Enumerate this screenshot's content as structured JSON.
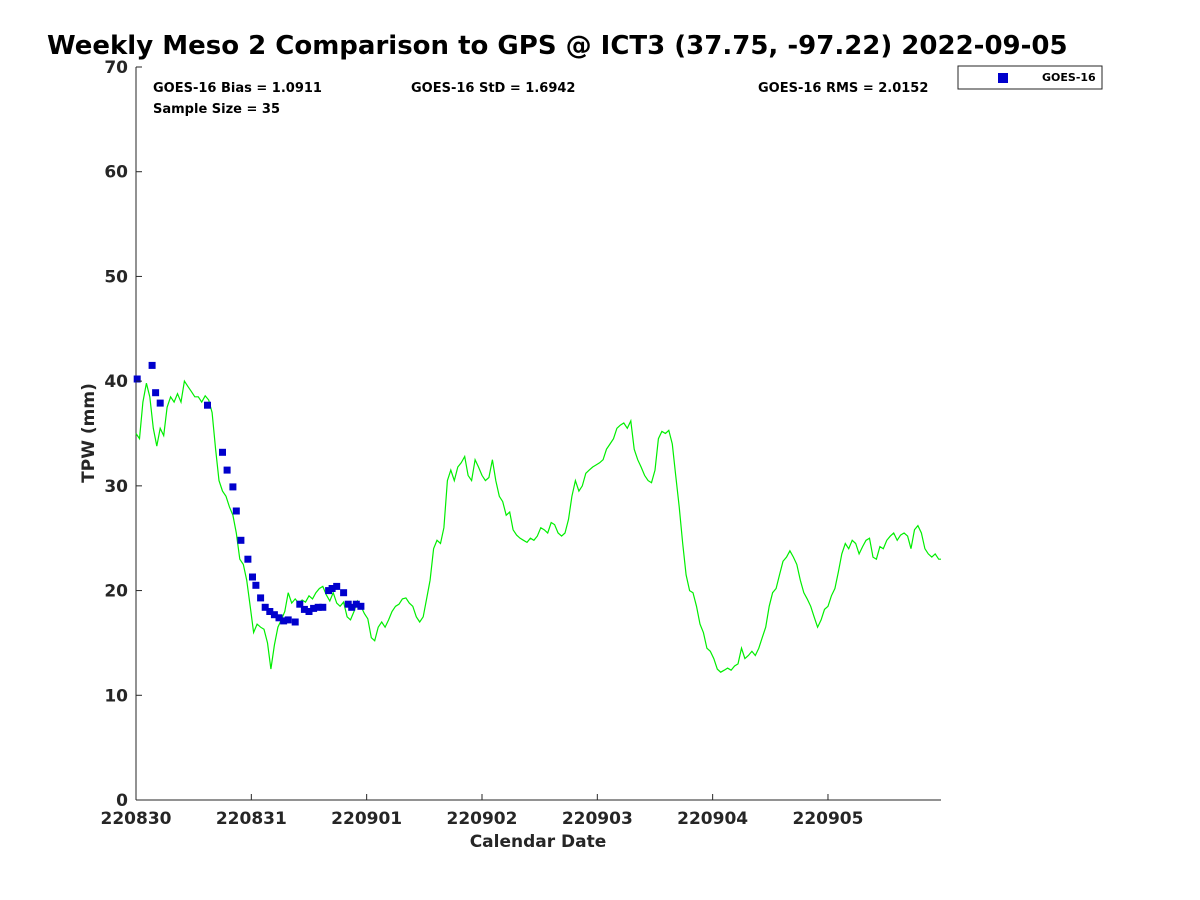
{
  "chart_data": {
    "type": "scatter",
    "title": "Weekly Meso 2 Comparison to GPS @ ICT3 (37.75, -97.22) 2022-09-05",
    "xlabel": "Calendar Date",
    "ylabel": "TPW (mm)",
    "xlim": [
      0,
      6.98
    ],
    "ylim": [
      0,
      70
    ],
    "yticks": [
      0,
      10,
      20,
      30,
      40,
      50,
      60,
      70
    ],
    "xticks": [
      {
        "value": 0,
        "label": "220830"
      },
      {
        "value": 1,
        "label": "220831"
      },
      {
        "value": 2,
        "label": "220901"
      },
      {
        "value": 3,
        "label": "220902"
      },
      {
        "value": 4,
        "label": "220903"
      },
      {
        "value": 5,
        "label": "220904"
      },
      {
        "value": 6,
        "label": "220905"
      }
    ],
    "grid": false,
    "legend_position": "top-right, outside plot",
    "stats": {
      "bias": "GOES-16 Bias = 1.0911",
      "std": "GOES-16 StD = 1.6942",
      "rms": "GOES-16 RMS = 2.0152",
      "sample_size": "Sample Size = 35"
    },
    "series": [
      {
        "name": "GOES-16",
        "kind": "markers",
        "color": "#0000cc",
        "x": [
          0.01,
          0.14,
          0.17,
          0.21,
          0.62,
          0.75,
          0.79,
          0.84,
          0.87,
          0.91,
          0.97,
          1.01,
          1.04,
          1.08,
          1.12,
          1.16,
          1.2,
          1.24,
          1.28,
          1.32,
          1.38,
          1.42,
          1.46,
          1.5,
          1.54,
          1.58,
          1.62,
          1.67,
          1.7,
          1.74,
          1.8,
          1.84,
          1.87,
          1.91,
          1.95
        ],
        "y": [
          40.2,
          41.5,
          38.9,
          37.9,
          37.7,
          33.2,
          31.5,
          29.9,
          27.6,
          24.8,
          23.0,
          21.3,
          20.5,
          19.3,
          18.4,
          18.0,
          17.7,
          17.4,
          17.1,
          17.2,
          17.0,
          18.7,
          18.2,
          18.0,
          18.3,
          18.4,
          18.4,
          20.0,
          20.2,
          20.4,
          19.8,
          18.7,
          18.4,
          18.7,
          18.5
        ]
      },
      {
        "name": "GPS",
        "kind": "line",
        "color": "#00ee00",
        "x": [
          0,
          0.03,
          0.06,
          0.09,
          0.12,
          0.15,
          0.18,
          0.21,
          0.24,
          0.27,
          0.3,
          0.33,
          0.36,
          0.39,
          0.42,
          0.45,
          0.48,
          0.51,
          0.54,
          0.57,
          0.6,
          0.63,
          0.66,
          0.69,
          0.72,
          0.75,
          0.78,
          0.81,
          0.84,
          0.87,
          0.9,
          0.93,
          0.96,
          0.99,
          1.02,
          1.05,
          1.08,
          1.11,
          1.14,
          1.17,
          1.2,
          1.23,
          1.26,
          1.29,
          1.32,
          1.35,
          1.38,
          1.41,
          1.44,
          1.47,
          1.5,
          1.53,
          1.56,
          1.59,
          1.62,
          1.65,
          1.68,
          1.71,
          1.74,
          1.77,
          1.8,
          1.83,
          1.86,
          1.89,
          1.92,
          1.95,
          1.98,
          2.01,
          2.04,
          2.07,
          2.1,
          2.13,
          2.16,
          2.19,
          2.22,
          2.25,
          2.28,
          2.31,
          2.34,
          2.37,
          2.4,
          2.43,
          2.46,
          2.49,
          2.52,
          2.55,
          2.58,
          2.61,
          2.64,
          2.67,
          2.7,
          2.73,
          2.76,
          2.79,
          2.82,
          2.85,
          2.88,
          2.91,
          2.94,
          2.97,
          3.0,
          3.03,
          3.06,
          3.09,
          3.12,
          3.15,
          3.18,
          3.21,
          3.24,
          3.27,
          3.3,
          3.33,
          3.36,
          3.39,
          3.42,
          3.45,
          3.48,
          3.51,
          3.54,
          3.57,
          3.6,
          3.63,
          3.66,
          3.69,
          3.72,
          3.75,
          3.78,
          3.81,
          3.84,
          3.87,
          3.9,
          3.93,
          3.96,
          3.99,
          4.02,
          4.05,
          4.08,
          4.11,
          4.14,
          4.17,
          4.2,
          4.23,
          4.26,
          4.29,
          4.32,
          4.35,
          4.38,
          4.41,
          4.44,
          4.47,
          4.5,
          4.53,
          4.56,
          4.59,
          4.62,
          4.65,
          4.68,
          4.71,
          4.74,
          4.77,
          4.8,
          4.83,
          4.86,
          4.89,
          4.92,
          4.95,
          4.98,
          5.01,
          5.04,
          5.07,
          5.1,
          5.13,
          5.16,
          5.19,
          5.22,
          5.25,
          5.28,
          5.31,
          5.34,
          5.37,
          5.4,
          5.43,
          5.46,
          5.49,
          5.52,
          5.55,
          5.58,
          5.61,
          5.64,
          5.67,
          5.7,
          5.73,
          5.76,
          5.79,
          5.82,
          5.85,
          5.88,
          5.91,
          5.94,
          5.97,
          6.0,
          6.03,
          6.06,
          6.09,
          6.12,
          6.15,
          6.18,
          6.21,
          6.24,
          6.27,
          6.3,
          6.33,
          6.36,
          6.39,
          6.42,
          6.45,
          6.48,
          6.51,
          6.54,
          6.57,
          6.6,
          6.63,
          6.66,
          6.69,
          6.72,
          6.75,
          6.78,
          6.81,
          6.84,
          6.87,
          6.9,
          6.93,
          6.96,
          6.98
        ],
        "y": [
          35.0,
          34.5,
          38.0,
          39.8,
          38.5,
          35.5,
          33.8,
          35.5,
          34.8,
          37.5,
          38.5,
          38.0,
          38.8,
          38.0,
          40.0,
          39.5,
          39.0,
          38.5,
          38.5,
          38.0,
          38.6,
          38.2,
          37.0,
          33.5,
          30.5,
          29.5,
          29.0,
          28.0,
          27.2,
          25.5,
          23.0,
          22.5,
          21.0,
          18.5,
          16.0,
          16.8,
          16.5,
          16.3,
          15.0,
          12.5,
          14.8,
          16.5,
          17.2,
          18.0,
          19.8,
          18.8,
          19.2,
          18.8,
          19.1,
          18.9,
          19.5,
          19.2,
          19.8,
          20.2,
          20.4,
          19.6,
          19.0,
          19.8,
          18.8,
          18.5,
          18.9,
          17.5,
          17.2,
          18.0,
          19.0,
          18.5,
          17.8,
          17.3,
          15.5,
          15.2,
          16.5,
          17.0,
          16.5,
          17.2,
          18.0,
          18.5,
          18.7,
          19.2,
          19.3,
          18.8,
          18.5,
          17.5,
          17.0,
          17.5,
          19.2,
          21.0,
          24.0,
          24.8,
          24.5,
          26.0,
          30.5,
          31.5,
          30.5,
          31.8,
          32.2,
          32.8,
          31.0,
          30.5,
          32.5,
          31.8,
          31.0,
          30.5,
          30.8,
          32.5,
          30.5,
          29.0,
          28.5,
          27.2,
          27.5,
          25.8,
          25.3,
          25.0,
          24.8,
          24.6,
          25.0,
          24.8,
          25.2,
          26.0,
          25.8,
          25.5,
          26.5,
          26.3,
          25.5,
          25.2,
          25.5,
          26.8,
          29.0,
          30.5,
          29.5,
          30.0,
          31.2,
          31.5,
          31.8,
          32.0,
          32.2,
          32.5,
          33.5,
          34.0,
          34.5,
          35.5,
          35.8,
          36.0,
          35.5,
          36.2,
          33.5,
          32.5,
          31.8,
          31.0,
          30.5,
          30.3,
          31.5,
          34.5,
          35.2,
          35.0,
          35.3,
          34.0,
          31.0,
          28.0,
          24.5,
          21.5,
          20.0,
          19.8,
          18.5,
          16.8,
          16.0,
          14.5,
          14.2,
          13.5,
          12.5,
          12.2,
          12.4,
          12.6,
          12.4,
          12.8,
          13.0,
          14.5,
          13.5,
          13.8,
          14.2,
          13.8,
          14.5,
          15.5,
          16.5,
          18.5,
          19.8,
          20.2,
          21.5,
          22.8,
          23.2,
          23.8,
          23.2,
          22.5,
          21.0,
          19.8,
          19.2,
          18.5,
          17.5,
          16.5,
          17.2,
          18.2,
          18.5,
          19.5,
          20.2,
          21.8,
          23.5,
          24.5,
          24.0,
          24.8,
          24.5,
          23.5,
          24.2,
          24.8,
          25.0,
          23.2,
          23.0,
          24.2,
          24.0,
          24.8,
          25.2,
          25.5,
          24.8,
          25.3,
          25.5,
          25.2,
          24.0,
          25.8,
          26.2,
          25.5,
          24.0,
          23.5,
          23.2,
          23.5,
          23.0,
          23.0
        ]
      }
    ]
  }
}
